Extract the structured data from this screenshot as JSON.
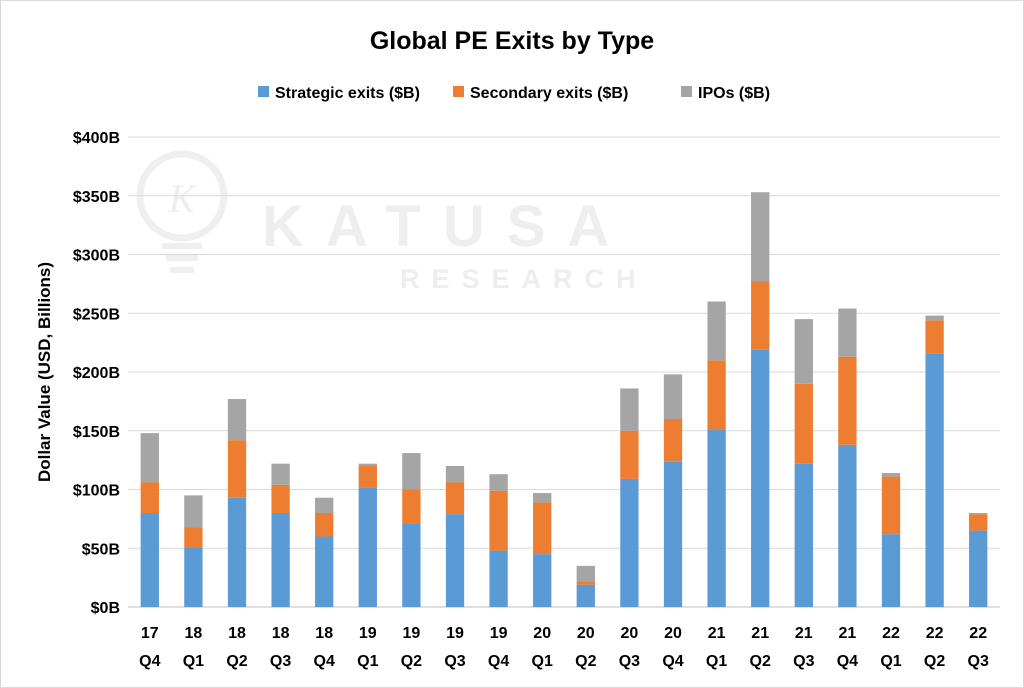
{
  "chart_data": {
    "type": "bar",
    "stacked": true,
    "title": "Global PE Exits by Type",
    "ylabel": "Dollar Value (USD, Billions)",
    "xlabel": "",
    "ylim": [
      0,
      400
    ],
    "y_ticks": [
      0,
      50,
      100,
      150,
      200,
      250,
      300,
      350,
      400
    ],
    "y_tick_labels": [
      "$0B",
      "$50B",
      "$100B",
      "$150B",
      "$200B",
      "$250B",
      "$300B",
      "$350B",
      "$400B"
    ],
    "grid": true,
    "legend_position": "top",
    "categories": [
      [
        "17",
        "Q4"
      ],
      [
        "18",
        "Q1"
      ],
      [
        "18",
        "Q2"
      ],
      [
        "18",
        "Q3"
      ],
      [
        "18",
        "Q4"
      ],
      [
        "19",
        "Q1"
      ],
      [
        "19",
        "Q2"
      ],
      [
        "19",
        "Q3"
      ],
      [
        "19",
        "Q4"
      ],
      [
        "20",
        "Q1"
      ],
      [
        "20",
        "Q2"
      ],
      [
        "20",
        "Q3"
      ],
      [
        "20",
        "Q4"
      ],
      [
        "21",
        "Q1"
      ],
      [
        "21",
        "Q2"
      ],
      [
        "21",
        "Q3"
      ],
      [
        "21",
        "Q4"
      ],
      [
        "22",
        "Q1"
      ],
      [
        "22",
        "Q2"
      ],
      [
        "22",
        "Q3"
      ]
    ],
    "series": [
      {
        "name": "Strategic exits ($B)",
        "color": "#5b9bd5",
        "values": [
          80,
          51,
          93,
          80,
          60,
          102,
          71,
          79,
          48,
          45,
          19,
          109,
          124,
          151,
          219,
          122,
          138,
          62,
          216,
          65
        ]
      },
      {
        "name": "Secondary exits ($B)",
        "color": "#ed7d31",
        "values": [
          26,
          17,
          49,
          24,
          20,
          18,
          29,
          27,
          51,
          44,
          3,
          41,
          36,
          59,
          58,
          68,
          75,
          49,
          28,
          14
        ]
      },
      {
        "name": "IPOs ($B)",
        "color": "#a5a5a5",
        "values": [
          42,
          27,
          35,
          18,
          13,
          2,
          31,
          14,
          14,
          8,
          13,
          36,
          38,
          50,
          76,
          55,
          41,
          3,
          4,
          1
        ]
      }
    ]
  },
  "watermark": {
    "brand": "KATUSA",
    "sub": "RESEARCH",
    "logo_letter": "K"
  }
}
